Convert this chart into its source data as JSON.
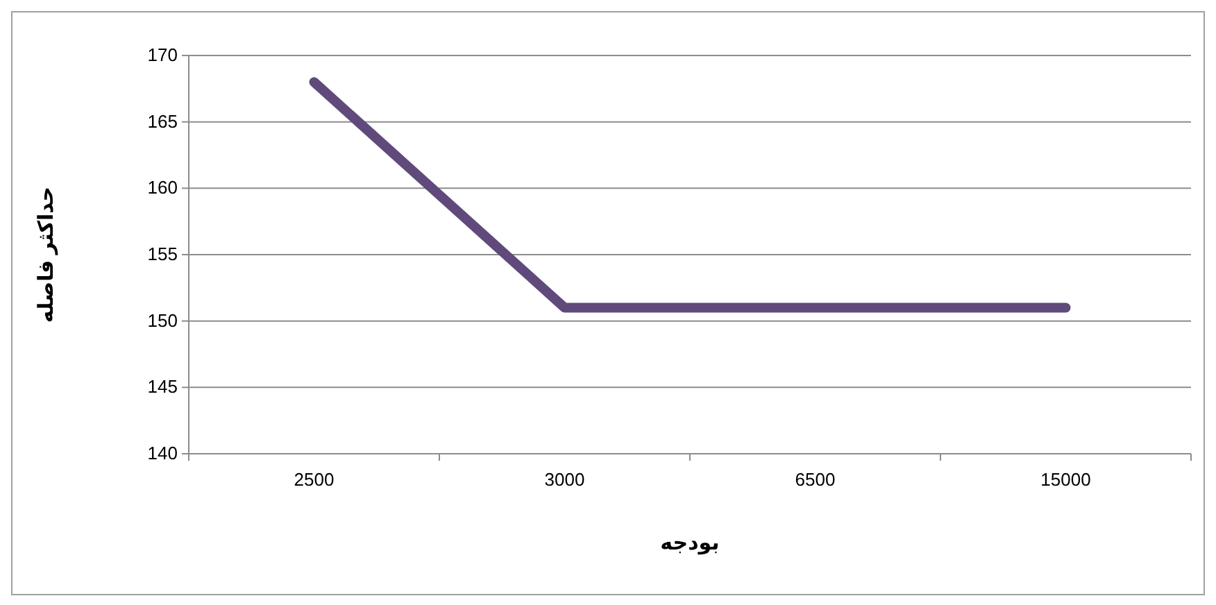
{
  "chart_data": {
    "type": "line",
    "xlabel": "بودجه",
    "ylabel": "حداکثر فاصله",
    "categories": [
      "2500",
      "3000",
      "6500",
      "15000"
    ],
    "series": [
      {
        "color": "#604a7b",
        "values": [
          168,
          151,
          151,
          151
        ]
      }
    ],
    "ylim": [
      140,
      170
    ],
    "yticks": [
      140,
      145,
      150,
      155,
      160,
      165,
      170
    ],
    "grid": "y",
    "marker": "none",
    "line_style": "solid"
  }
}
